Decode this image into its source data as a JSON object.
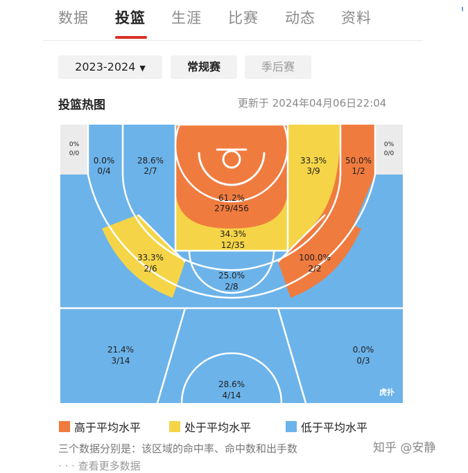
{
  "tabs": [
    {
      "label": "数据",
      "active": false
    },
    {
      "label": "投篮",
      "active": true
    },
    {
      "label": "生涯",
      "active": false
    },
    {
      "label": "比赛",
      "active": false
    },
    {
      "label": "动态",
      "active": false
    },
    {
      "label": "资料",
      "active": false
    }
  ],
  "filters": {
    "season": "2023-2024",
    "season_icon": "caret-down-icon",
    "regular": "常规赛",
    "playoff": "季后赛"
  },
  "section": {
    "title": "投篮热图",
    "updated": "更新于 2024年04月06日22:04"
  },
  "colors": {
    "high": "#f07b3f",
    "mid": "#f5d547",
    "low": "#6cb3ea",
    "corner": "#ebebeb",
    "accent": "#d93025"
  },
  "zones": {
    "corner_left": {
      "pct": "0%",
      "made_att": "0/0",
      "level": "none"
    },
    "corner_right": {
      "pct": "0%",
      "made_att": "0/0",
      "level": "none"
    },
    "three_left_corner": {
      "pct": "0.0%",
      "made_att": "0/4",
      "level": "low"
    },
    "mid_left_baseline": {
      "pct": "28.6%",
      "made_att": "2/7",
      "level": "low"
    },
    "restricted": {
      "pct": "61.2%",
      "made_att": "279/456",
      "level": "high"
    },
    "mid_right_baseline": {
      "pct": "33.3%",
      "made_att": "3/9",
      "level": "mid"
    },
    "three_right_corner": {
      "pct": "50.0%",
      "made_att": "1/2",
      "level": "high"
    },
    "paint": {
      "pct": "34.3%",
      "made_att": "12/35",
      "level": "mid"
    },
    "mid_left_wing": {
      "pct": "33.3%",
      "made_att": "2/6",
      "level": "mid"
    },
    "mid_right_wing": {
      "pct": "100.0%",
      "made_att": "2/2",
      "level": "high"
    },
    "mid_top": {
      "pct": "25.0%",
      "made_att": "2/8",
      "level": "low"
    },
    "three_left_wing": {
      "pct": "21.4%",
      "made_att": "3/14",
      "level": "low"
    },
    "three_right_wing": {
      "pct": "0.0%",
      "made_att": "0/3",
      "level": "low"
    },
    "three_top": {
      "pct": "28.6%",
      "made_att": "4/14",
      "level": "low"
    }
  },
  "court_logo": "虎扑",
  "legend": {
    "high": "高于平均水平",
    "mid": "处于平均水平",
    "low": "低于平均水平"
  },
  "note": "三个数据分别是：该区域的命中率、命中数和出手数",
  "note2": "· · · 查看更多数据",
  "watermark": "知乎 @安静"
}
